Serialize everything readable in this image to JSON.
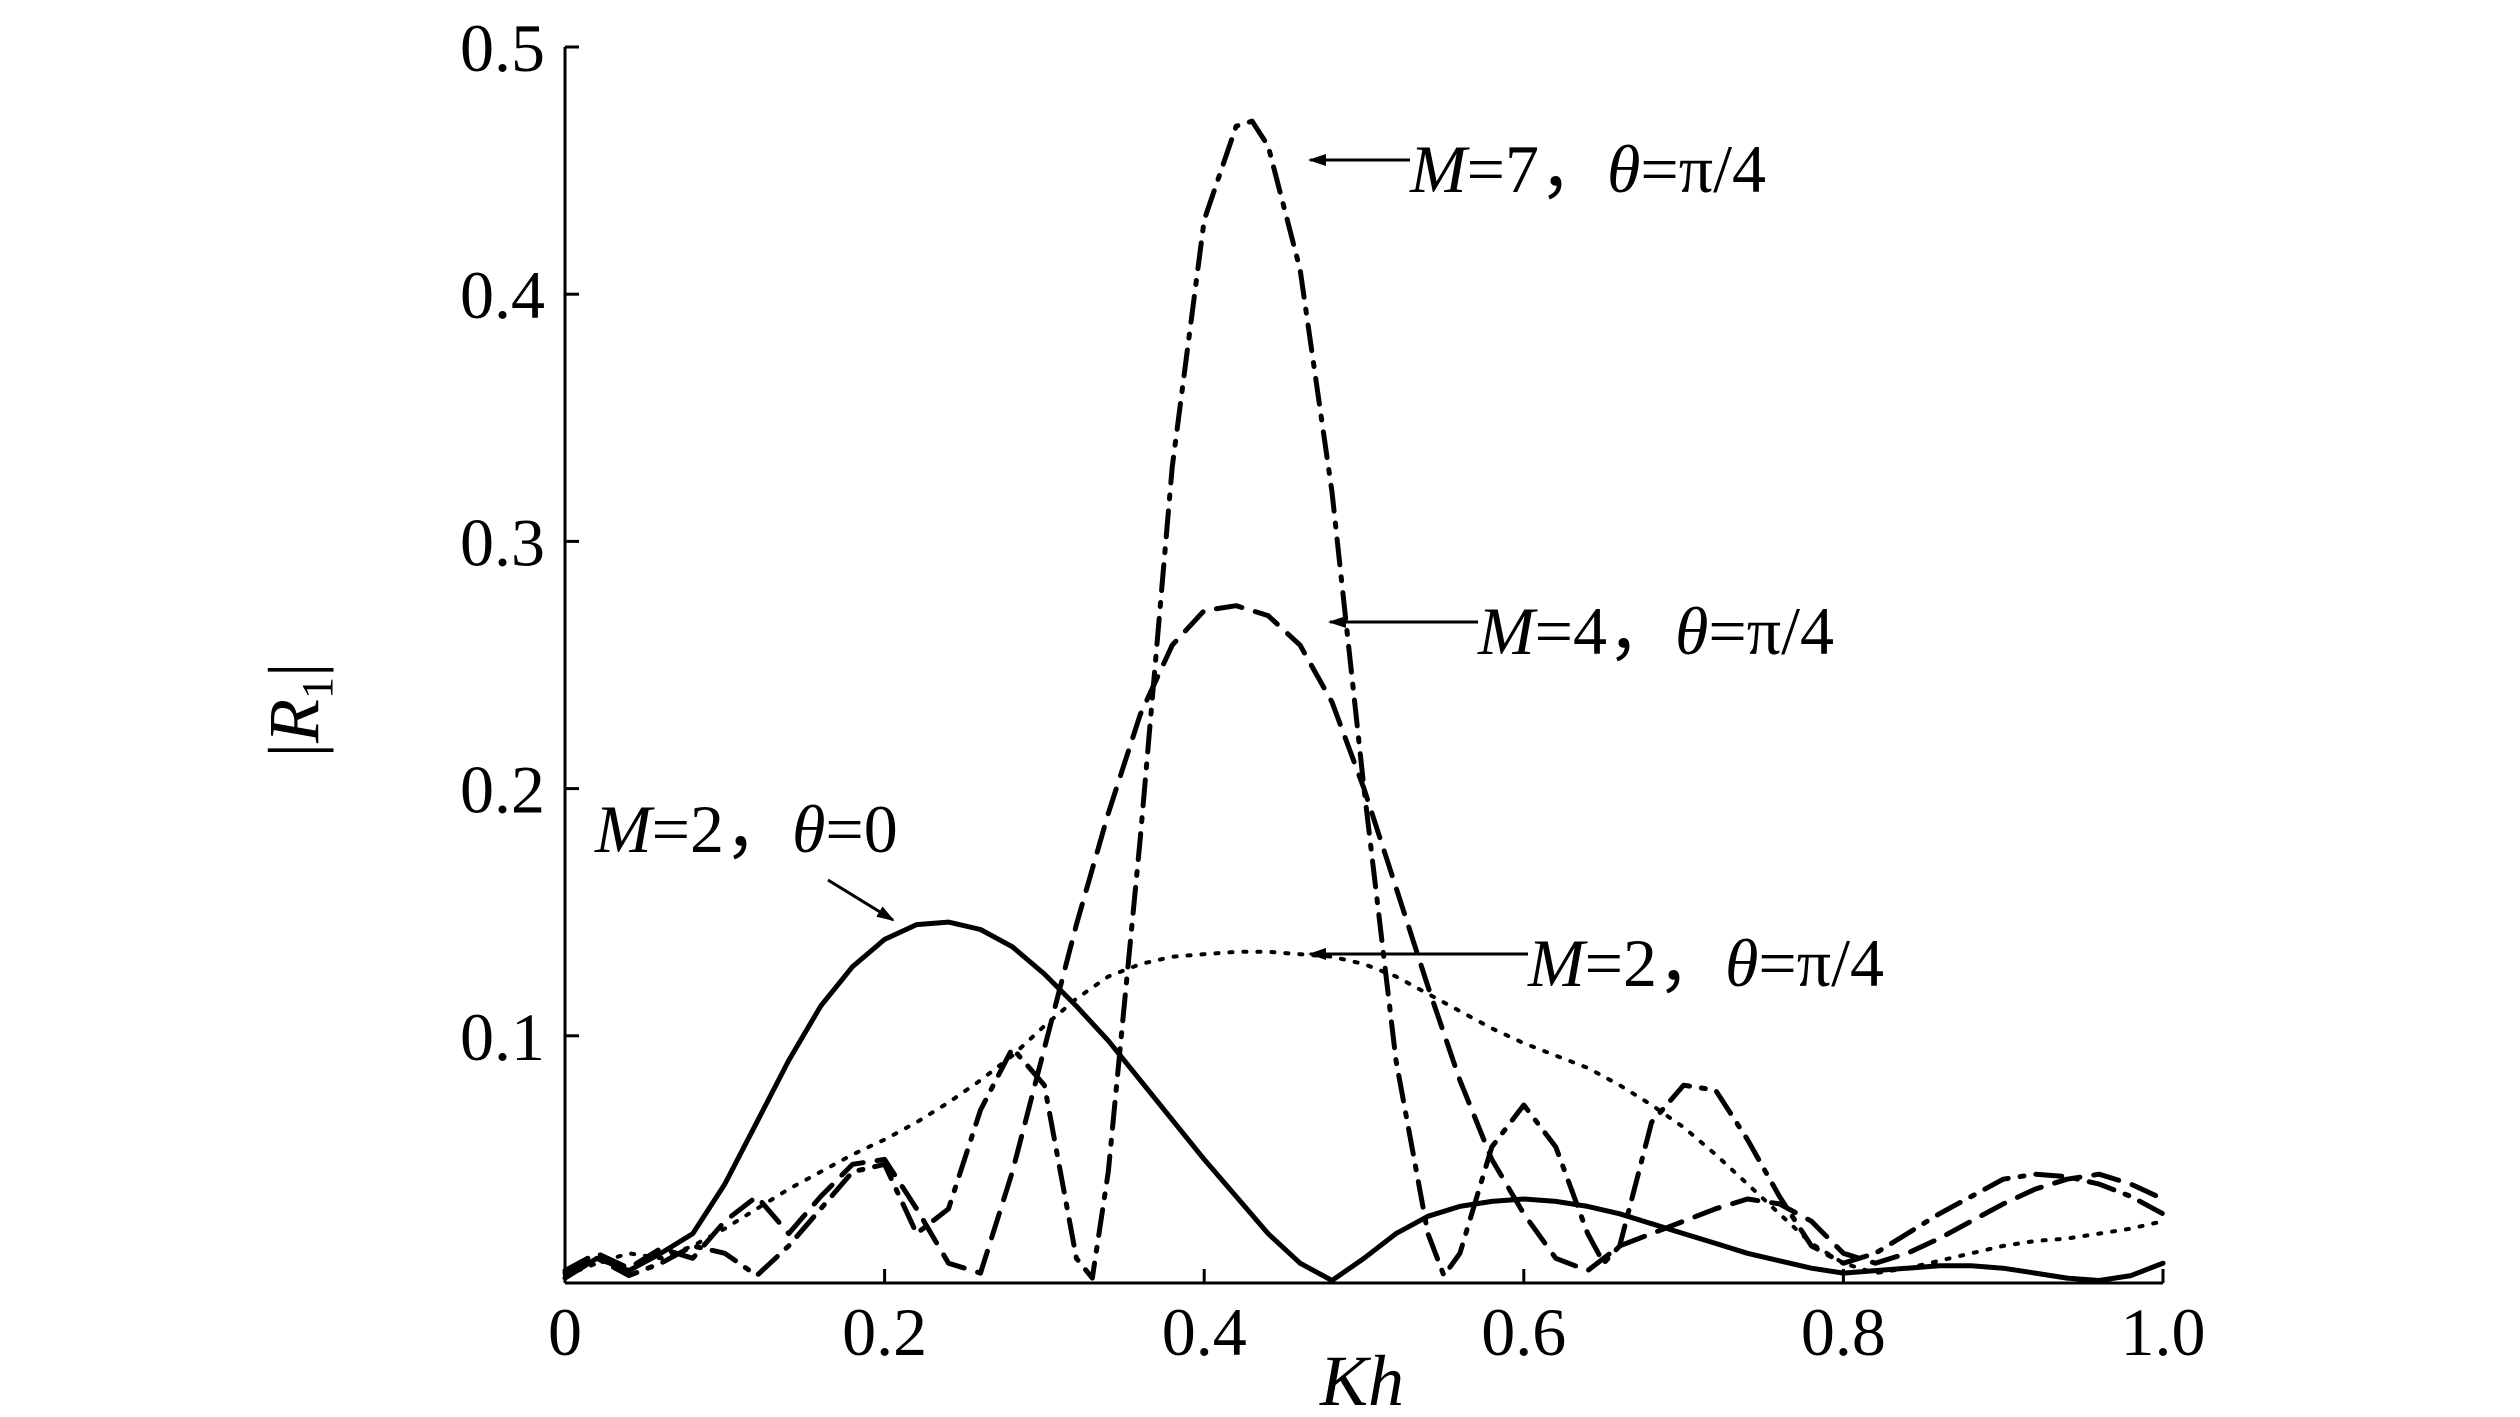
{
  "chart_data": {
    "type": "line",
    "title": "",
    "xlabel": "Kh",
    "ylabel_main": "R",
    "ylabel_sub": "1",
    "xlim": [
      0,
      1.0
    ],
    "ylim": [
      0,
      0.5
    ],
    "x_ticks": [
      {
        "value": 0,
        "label": "0"
      },
      {
        "value": 0.2,
        "label": "0.2"
      },
      {
        "value": 0.4,
        "label": "0.4"
      },
      {
        "value": 0.6,
        "label": "0.6"
      },
      {
        "value": 0.8,
        "label": "0.8"
      },
      {
        "value": 1.0,
        "label": "1.0"
      }
    ],
    "y_ticks": [
      {
        "value": 0.1,
        "label": "0.1"
      },
      {
        "value": 0.2,
        "label": "0.2"
      },
      {
        "value": 0.3,
        "label": "0.3"
      },
      {
        "value": 0.4,
        "label": "0.4"
      },
      {
        "value": 0.5,
        "label": "0.5"
      }
    ],
    "grid": false,
    "series": [
      {
        "name": "M=2, θ=0",
        "style": "solid",
        "x": [
          0,
          0.02,
          0.04,
          0.06,
          0.08,
          0.1,
          0.12,
          0.14,
          0.16,
          0.18,
          0.2,
          0.22,
          0.24,
          0.26,
          0.28,
          0.3,
          0.32,
          0.34,
          0.36,
          0.38,
          0.4,
          0.42,
          0.44,
          0.46,
          0.48,
          0.5,
          0.52,
          0.54,
          0.56,
          0.58,
          0.6,
          0.62,
          0.64,
          0.66,
          0.68,
          0.7,
          0.72,
          0.74,
          0.76,
          0.78,
          0.8,
          0.82,
          0.84,
          0.86,
          0.88,
          0.9,
          0.92,
          0.94,
          0.96,
          0.98,
          1.0
        ],
        "y": [
          0.002,
          0.01,
          0.005,
          0.012,
          0.02,
          0.04,
          0.065,
          0.09,
          0.112,
          0.128,
          0.139,
          0.145,
          0.146,
          0.143,
          0.136,
          0.125,
          0.112,
          0.098,
          0.082,
          0.066,
          0.05,
          0.035,
          0.02,
          0.008,
          0.001,
          0.01,
          0.02,
          0.027,
          0.031,
          0.033,
          0.034,
          0.033,
          0.031,
          0.028,
          0.024,
          0.02,
          0.016,
          0.012,
          0.009,
          0.006,
          0.004,
          0.005,
          0.006,
          0.007,
          0.007,
          0.006,
          0.004,
          0.002,
          0.001,
          0.003,
          0.008
        ]
      },
      {
        "name": "M=2, θ=π/4",
        "style": "dotted",
        "x": [
          0,
          0.02,
          0.04,
          0.06,
          0.08,
          0.1,
          0.12,
          0.14,
          0.16,
          0.18,
          0.2,
          0.22,
          0.24,
          0.26,
          0.28,
          0.3,
          0.32,
          0.34,
          0.36,
          0.38,
          0.4,
          0.42,
          0.44,
          0.46,
          0.48,
          0.5,
          0.52,
          0.54,
          0.56,
          0.58,
          0.6,
          0.62,
          0.64,
          0.66,
          0.68,
          0.7,
          0.72,
          0.74,
          0.76,
          0.78,
          0.8,
          0.82,
          0.84,
          0.86,
          0.88,
          0.9,
          0.92,
          0.94,
          0.96,
          0.98,
          1.0
        ],
        "y": [
          0.003,
          0.008,
          0.012,
          0.01,
          0.015,
          0.022,
          0.03,
          0.038,
          0.045,
          0.052,
          0.058,
          0.065,
          0.073,
          0.082,
          0.092,
          0.104,
          0.115,
          0.124,
          0.129,
          0.132,
          0.133,
          0.134,
          0.134,
          0.133,
          0.132,
          0.129,
          0.124,
          0.117,
          0.11,
          0.103,
          0.097,
          0.092,
          0.087,
          0.08,
          0.072,
          0.063,
          0.052,
          0.04,
          0.028,
          0.016,
          0.008,
          0.004,
          0.006,
          0.009,
          0.012,
          0.015,
          0.017,
          0.018,
          0.02,
          0.022,
          0.025
        ]
      },
      {
        "name": "M=4, θ=π/4",
        "style": "dashed",
        "x": [
          0,
          0.02,
          0.04,
          0.06,
          0.08,
          0.1,
          0.12,
          0.14,
          0.16,
          0.18,
          0.2,
          0.22,
          0.24,
          0.26,
          0.28,
          0.3,
          0.32,
          0.34,
          0.36,
          0.38,
          0.4,
          0.42,
          0.44,
          0.46,
          0.48,
          0.5,
          0.52,
          0.54,
          0.56,
          0.58,
          0.6,
          0.62,
          0.64,
          0.66,
          0.68,
          0.7,
          0.72,
          0.74,
          0.76,
          0.78,
          0.8,
          0.82,
          0.84,
          0.86,
          0.88,
          0.9,
          0.92,
          0.94,
          0.96,
          0.98,
          1.0
        ],
        "y": [
          0.005,
          0.012,
          0.006,
          0.014,
          0.01,
          0.025,
          0.035,
          0.02,
          0.035,
          0.048,
          0.05,
          0.03,
          0.008,
          0.004,
          0.045,
          0.095,
          0.145,
          0.19,
          0.23,
          0.258,
          0.272,
          0.274,
          0.27,
          0.258,
          0.235,
          0.2,
          0.16,
          0.12,
          0.082,
          0.05,
          0.028,
          0.01,
          0.005,
          0.015,
          0.02,
          0.025,
          0.03,
          0.034,
          0.032,
          0.025,
          0.012,
          0.008,
          0.012,
          0.018,
          0.025,
          0.032,
          0.038,
          0.042,
          0.044,
          0.04,
          0.034
        ]
      },
      {
        "name": "M=7, θ=π/4",
        "style": "dashdot",
        "x": [
          0,
          0.02,
          0.04,
          0.06,
          0.08,
          0.1,
          0.12,
          0.14,
          0.16,
          0.18,
          0.2,
          0.22,
          0.24,
          0.26,
          0.28,
          0.3,
          0.31,
          0.32,
          0.33,
          0.34,
          0.36,
          0.38,
          0.4,
          0.42,
          0.43,
          0.44,
          0.46,
          0.48,
          0.5,
          0.52,
          0.54,
          0.55,
          0.56,
          0.58,
          0.6,
          0.62,
          0.64,
          0.65,
          0.66,
          0.68,
          0.7,
          0.72,
          0.74,
          0.76,
          0.78,
          0.8,
          0.82,
          0.84,
          0.86,
          0.88,
          0.9,
          0.92,
          0.94,
          0.96,
          0.98,
          1.0
        ],
        "y": [
          0.004,
          0.01,
          0.003,
          0.008,
          0.015,
          0.012,
          0.003,
          0.015,
          0.03,
          0.045,
          0.048,
          0.02,
          0.03,
          0.07,
          0.095,
          0.08,
          0.045,
          0.01,
          0.002,
          0.045,
          0.18,
          0.33,
          0.43,
          0.468,
          0.47,
          0.46,
          0.41,
          0.32,
          0.2,
          0.09,
          0.02,
          0.003,
          0.012,
          0.055,
          0.072,
          0.055,
          0.02,
          0.008,
          0.015,
          0.065,
          0.08,
          0.078,
          0.058,
          0.035,
          0.015,
          0.008,
          0.012,
          0.02,
          0.028,
          0.035,
          0.042,
          0.044,
          0.043,
          0.04,
          0.035,
          0.028
        ]
      }
    ],
    "annotations": [
      {
        "text_var": "M",
        "text_mid": "=7，",
        "text_theta": "θ",
        "text_rest": "=π/4",
        "series": "M=7, θ=π/4",
        "x": 0.43,
        "y": 0.46
      },
      {
        "text_var": "M",
        "text_mid": "=4，",
        "text_theta": "θ",
        "text_rest": "=π/4",
        "series": "M=4, θ=π/4",
        "x": 0.48,
        "y": 0.265
      },
      {
        "text_var": "M",
        "text_mid": "=2，",
        "text_theta": "θ",
        "text_rest": "=π/4",
        "series": "M=2, θ=π/4",
        "x": 0.46,
        "y": 0.133
      },
      {
        "text_var": "M",
        "text_mid": "=2，",
        "text_theta": "θ",
        "text_rest": "=0",
        "series": "M=2, θ=0",
        "x": 0.21,
        "y": 0.145
      }
    ]
  }
}
